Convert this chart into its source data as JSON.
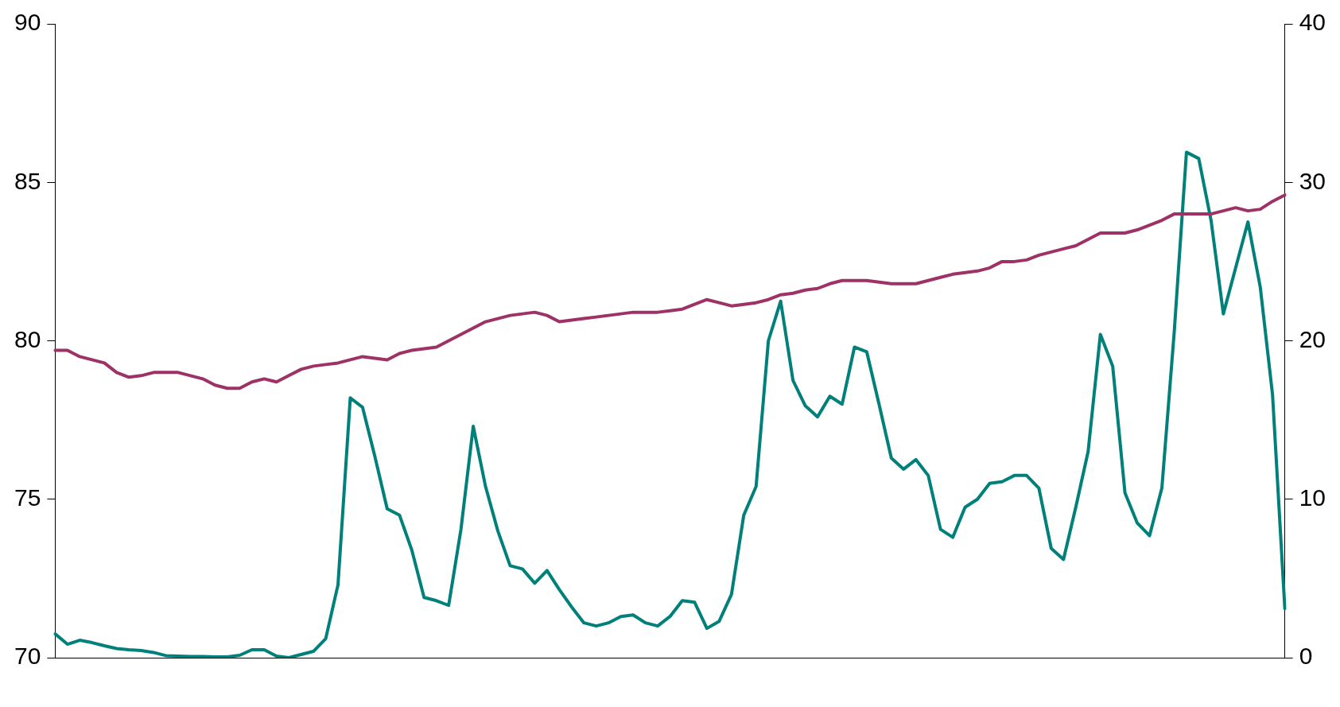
{
  "chart_data": {
    "type": "line",
    "categories": [
      null,
      null,
      null,
      null,
      null,
      null,
      null,
      null,
      null,
      null,
      null,
      null,
      null,
      null,
      null,
      null,
      null,
      null,
      null,
      null,
      null,
      null,
      null,
      null,
      null,
      null,
      null,
      null,
      null,
      null,
      null,
      null,
      null,
      null,
      null,
      null,
      null,
      null,
      null,
      null,
      null,
      null,
      null,
      null,
      null,
      null,
      null,
      null,
      null,
      null,
      null,
      null,
      null,
      null,
      null,
      null,
      null,
      null,
      null,
      null,
      null,
      null,
      null,
      null,
      null,
      null,
      null,
      null,
      null,
      null,
      null,
      null,
      null,
      null,
      null,
      null,
      null,
      null,
      null,
      null,
      null,
      null,
      null,
      null,
      null,
      null,
      null,
      null,
      null,
      null,
      null,
      null,
      null,
      null,
      null,
      null,
      null,
      null,
      null,
      null,
      null
    ],
    "ylim": [
      70,
      90
    ],
    "yticks": [
      70,
      75,
      80,
      85,
      90
    ],
    "y2lim": [
      0,
      40
    ],
    "y2ticks": [
      0,
      10,
      20,
      30,
      40
    ],
    "grid": false,
    "series": [
      {
        "color": "#9e3166",
        "values": [
          79.7,
          79.7,
          79.5,
          79.4,
          79.3,
          79.0,
          78.85,
          78.9,
          79.0,
          79.0,
          79.0,
          78.9,
          78.8,
          78.6,
          78.5,
          78.5,
          78.7,
          78.8,
          78.7,
          78.9,
          79.1,
          79.2,
          79.25,
          79.3,
          79.4,
          79.5,
          79.45,
          79.4,
          79.6,
          79.7,
          79.75,
          79.8,
          80.0,
          80.2,
          80.4,
          80.6,
          80.7,
          80.8,
          80.85,
          80.9,
          80.8,
          80.6,
          80.65,
          80.7,
          80.75,
          80.8,
          80.85,
          80.9,
          80.9,
          80.9,
          80.95,
          81.0,
          81.15,
          81.3,
          81.2,
          81.1,
          81.15,
          81.2,
          81.3,
          81.45,
          81.5,
          81.6,
          81.65,
          81.8,
          81.9,
          81.9,
          81.9,
          81.85,
          81.8,
          81.8,
          81.8,
          81.9,
          82.0,
          82.1,
          82.15,
          82.2,
          82.3,
          82.5,
          82.5,
          82.55,
          82.7,
          82.8,
          82.9,
          83.0,
          83.2,
          83.4,
          83.4,
          83.4,
          83.5,
          83.65,
          83.8,
          84.0,
          84.0,
          84.0,
          84.0,
          84.1,
          84.2,
          84.1,
          84.15,
          84.4,
          84.6
        ]
      },
      {
        "color": "#00807a",
        "axis": "y2",
        "values": [
          1.5,
          0.85,
          1.1,
          0.95,
          0.75,
          0.58,
          0.5,
          0.45,
          0.33,
          0.13,
          0.1,
          0.08,
          0.07,
          0.05,
          0.05,
          0.15,
          0.5,
          0.5,
          0.1,
          0,
          0.2,
          0.4,
          1.2,
          4.6,
          16.4,
          15.8,
          12.7,
          9.4,
          9.0,
          6.8,
          3.8,
          3.6,
          3.3,
          8.1,
          14.6,
          10.8,
          8.0,
          5.8,
          5.6,
          4.7,
          5.5,
          4.3,
          3.2,
          2.2,
          2.0,
          2.2,
          2.6,
          2.7,
          2.2,
          2.0,
          2.6,
          3.6,
          3.5,
          1.85,
          2.3,
          4.0,
          9.0,
          10.8,
          20.0,
          22.5,
          17.5,
          15.9,
          15.2,
          16.5,
          16.0,
          19.6,
          19.3,
          16.0,
          12.6,
          11.9,
          12.5,
          11.5,
          8.1,
          7.6,
          9.5,
          10.0,
          11.0,
          11.1,
          11.5,
          11.5,
          10.7,
          6.9,
          6.2,
          9.5,
          13.0,
          20.4,
          18.4,
          10.4,
          8.5,
          7.7,
          10.7,
          20.5,
          31.9,
          31.5,
          27.6,
          21.7,
          24.6,
          27.5,
          23.4,
          16.6,
          3.1
        ]
      }
    ]
  }
}
